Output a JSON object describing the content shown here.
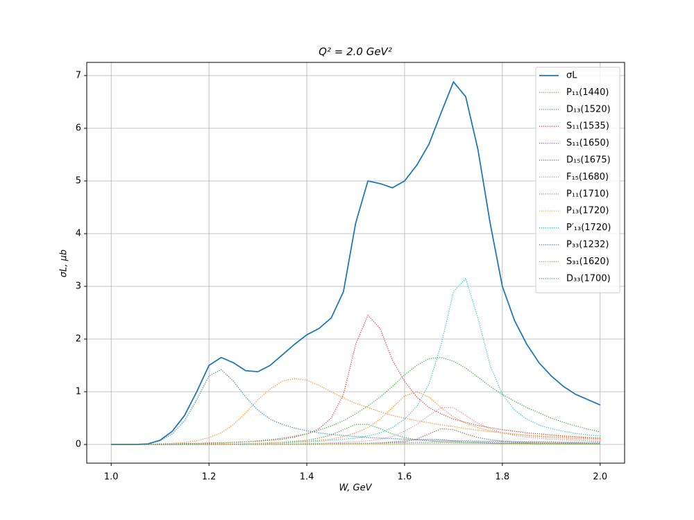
{
  "chart_data": {
    "type": "line",
    "title": "Q² = 2.0 GeV²",
    "xlabel": "W, GeV",
    "ylabel": "σL, μb",
    "xlim": [
      0.95,
      2.05
    ],
    "ylim": [
      -0.355,
      7.25
    ],
    "xticks": [
      {
        "value": 1,
        "label": "1.0"
      },
      1.2,
      1.4,
      1.6,
      1.8,
      {
        "value": 2,
        "label": "2.0"
      }
    ],
    "yticks": [
      0,
      1,
      2,
      3,
      4,
      5,
      6,
      7
    ],
    "grid": true,
    "legend": "upper right",
    "x": [
      1.0,
      1.025,
      1.05,
      1.075,
      1.1,
      1.125,
      1.15,
      1.175,
      1.2,
      1.225,
      1.25,
      1.275,
      1.3,
      1.325,
      1.35,
      1.375,
      1.4,
      1.425,
      1.45,
      1.475,
      1.5,
      1.525,
      1.55,
      1.575,
      1.6,
      1.625,
      1.65,
      1.675,
      1.7,
      1.725,
      1.75,
      1.775,
      1.8,
      1.825,
      1.85,
      1.875,
      1.9,
      1.925,
      1.95,
      1.975,
      2.0
    ],
    "series": [
      {
        "name": "σL",
        "color": "#1f77b4",
        "style": "solid",
        "values": [
          0,
          0,
          0,
          0.01,
          0.08,
          0.25,
          0.55,
          1.0,
          1.5,
          1.65,
          1.55,
          1.4,
          1.38,
          1.5,
          1.7,
          1.9,
          2.08,
          2.2,
          2.4,
          2.9,
          4.2,
          5.0,
          4.95,
          4.87,
          5.0,
          5.3,
          5.7,
          6.3,
          6.88,
          6.6,
          5.6,
          4.2,
          3.0,
          2.35,
          1.9,
          1.55,
          1.3,
          1.1,
          0.95,
          0.85,
          0.75
        ]
      },
      {
        "name": "P₁₁(1440)",
        "color": "#ff7f0e",
        "style": "dotted",
        "values": [
          0,
          0,
          0,
          0,
          0.01,
          0.02,
          0.04,
          0.07,
          0.13,
          0.22,
          0.38,
          0.6,
          0.85,
          1.05,
          1.2,
          1.25,
          1.22,
          1.12,
          1.0,
          0.88,
          0.78,
          0.7,
          0.62,
          0.55,
          0.5,
          0.45,
          0.41,
          0.37,
          0.34,
          0.3,
          0.27,
          0.24,
          0.22,
          0.2,
          0.18,
          0.16,
          0.15,
          0.14,
          0.13,
          0.12,
          0.11
        ]
      },
      {
        "name": "D₁₃(1520)",
        "color": "#2ca02c",
        "style": "dotted",
        "values": [
          0,
          0,
          0,
          0,
          0,
          0,
          0,
          0,
          0,
          0.01,
          0.01,
          0.01,
          0.02,
          0.03,
          0.04,
          0.06,
          0.08,
          0.12,
          0.18,
          0.28,
          0.38,
          0.38,
          0.3,
          0.2,
          0.13,
          0.09,
          0.07,
          0.05,
          0.04,
          0.03,
          0.03,
          0.02,
          0.02,
          0.02,
          0.02,
          0.01,
          0.01,
          0.01,
          0.01,
          0.01,
          0.01
        ]
      },
      {
        "name": "S₁₁(1535)",
        "color": "#d62728",
        "style": "dotted",
        "values": [
          0,
          0,
          0,
          0,
          0.01,
          0.01,
          0.02,
          0.02,
          0.03,
          0.03,
          0.04,
          0.05,
          0.06,
          0.08,
          0.1,
          0.14,
          0.2,
          0.3,
          0.5,
          0.95,
          1.9,
          2.45,
          2.2,
          1.6,
          1.2,
          0.9,
          0.7,
          0.58,
          0.48,
          0.42,
          0.36,
          0.32,
          0.28,
          0.25,
          0.22,
          0.2,
          0.18,
          0.16,
          0.15,
          0.13,
          0.12
        ]
      },
      {
        "name": "S₁₁(1650)",
        "color": "#9467bd",
        "style": "dotted",
        "values": [
          0,
          0,
          0,
          0,
          0,
          0,
          0,
          0,
          0,
          0,
          0,
          0,
          0,
          0,
          0.01,
          0.01,
          0.01,
          0.01,
          0.02,
          0.02,
          0.02,
          0.02,
          0.03,
          0.05,
          0.07,
          0.09,
          0.1,
          0.09,
          0.07,
          0.05,
          0.04,
          0.03,
          0.03,
          0.02,
          0.02,
          0.02,
          0.02,
          0.01,
          0.01,
          0.01,
          0.01
        ]
      },
      {
        "name": "D₁₅(1675)",
        "color": "#8c564b",
        "style": "dotted",
        "values": [
          0,
          0,
          0,
          0,
          0,
          0,
          0,
          0,
          0,
          0,
          0,
          0,
          0,
          0,
          0,
          0,
          0,
          0.01,
          0.01,
          0.01,
          0.02,
          0.02,
          0.03,
          0.04,
          0.05,
          0.1,
          0.2,
          0.3,
          0.28,
          0.2,
          0.13,
          0.09,
          0.06,
          0.05,
          0.04,
          0.04,
          0.03,
          0.03,
          0.03,
          0.02,
          0.02
        ]
      },
      {
        "name": "F₁₅(1680)",
        "color": "#e377c2",
        "style": "dotted",
        "values": [
          0,
          0,
          0,
          0,
          0,
          0,
          0,
          0,
          0,
          0,
          0,
          0,
          0.01,
          0.01,
          0.01,
          0.01,
          0.02,
          0.02,
          0.03,
          0.04,
          0.05,
          0.07,
          0.1,
          0.15,
          0.25,
          0.38,
          0.55,
          0.7,
          0.7,
          0.55,
          0.4,
          0.3,
          0.22,
          0.17,
          0.14,
          0.12,
          0.1,
          0.09,
          0.08,
          0.07,
          0.06
        ]
      },
      {
        "name": "P₁₁(1710)",
        "color": "#7f7f7f",
        "style": "dotted",
        "values": [
          0,
          0,
          0,
          0,
          0,
          0,
          0,
          0,
          0,
          0,
          0,
          0,
          0,
          0,
          0,
          0.01,
          0.01,
          0.01,
          0.01,
          0.01,
          0.02,
          0.02,
          0.02,
          0.03,
          0.03,
          0.04,
          0.04,
          0.05,
          0.05,
          0.05,
          0.04,
          0.04,
          0.03,
          0.03,
          0.03,
          0.02,
          0.02,
          0.02,
          0.02,
          0.02,
          0.01
        ]
      },
      {
        "name": "P₁₃(1720)",
        "color": "#bcbd22",
        "style": "dotted",
        "values": [
          0,
          0,
          0,
          0,
          0,
          0,
          0,
          0,
          0,
          0,
          0,
          0,
          0,
          0,
          0,
          0,
          0,
          0,
          0.01,
          0.01,
          0.01,
          0.01,
          0.01,
          0.01,
          0.01,
          0.02,
          0.02,
          0.02,
          0.02,
          0.02,
          0.02,
          0.02,
          0.01,
          0.01,
          0.01,
          0.01,
          0.01,
          0.01,
          0.01,
          0.01,
          0.01
        ]
      },
      {
        "name": "P′₁₃(1720)",
        "color": "#17becf",
        "style": "dotted",
        "values": [
          0,
          0,
          0,
          0,
          0,
          0,
          0,
          0,
          0,
          0,
          0.01,
          0.01,
          0.02,
          0.02,
          0.03,
          0.04,
          0.05,
          0.06,
          0.08,
          0.1,
          0.12,
          0.16,
          0.22,
          0.32,
          0.48,
          0.72,
          1.15,
          1.9,
          2.9,
          3.15,
          2.4,
          1.5,
          0.95,
          0.65,
          0.48,
          0.37,
          0.3,
          0.25,
          0.21,
          0.18,
          0.16
        ]
      },
      {
        "name": "P₃₃(1232)",
        "color": "#1f77b4",
        "style": "dotted",
        "values": [
          0,
          0,
          0,
          0.01,
          0.07,
          0.2,
          0.45,
          0.85,
          1.3,
          1.42,
          1.2,
          0.9,
          0.65,
          0.48,
          0.38,
          0.31,
          0.26,
          0.22,
          0.19,
          0.17,
          0.15,
          0.13,
          0.12,
          0.11,
          0.1,
          0.09,
          0.08,
          0.08,
          0.07,
          0.07,
          0.06,
          0.06,
          0.06,
          0.05,
          0.05,
          0.05,
          0.05,
          0.04,
          0.04,
          0.04,
          0.04
        ]
      },
      {
        "name": "S₃₁(1620)",
        "color": "#ff7f0e",
        "style": "dotted",
        "values": [
          0,
          0,
          0,
          0,
          0,
          0,
          0,
          0,
          0.01,
          0.01,
          0.01,
          0.02,
          0.02,
          0.03,
          0.04,
          0.05,
          0.06,
          0.08,
          0.1,
          0.15,
          0.22,
          0.32,
          0.48,
          0.7,
          0.92,
          1.0,
          0.9,
          0.7,
          0.52,
          0.4,
          0.32,
          0.26,
          0.22,
          0.19,
          0.17,
          0.15,
          0.13,
          0.12,
          0.11,
          0.1,
          0.09
        ]
      },
      {
        "name": "D₃₃(1700)",
        "color": "#2ca02c",
        "style": "dotted",
        "values": [
          0,
          0,
          0,
          0,
          0,
          0,
          0.01,
          0.01,
          0.02,
          0.03,
          0.04,
          0.05,
          0.07,
          0.09,
          0.12,
          0.16,
          0.2,
          0.27,
          0.35,
          0.45,
          0.58,
          0.73,
          0.9,
          1.1,
          1.32,
          1.5,
          1.63,
          1.65,
          1.58,
          1.45,
          1.28,
          1.1,
          0.95,
          0.82,
          0.7,
          0.6,
          0.5,
          0.42,
          0.35,
          0.29,
          0.24
        ]
      }
    ]
  }
}
